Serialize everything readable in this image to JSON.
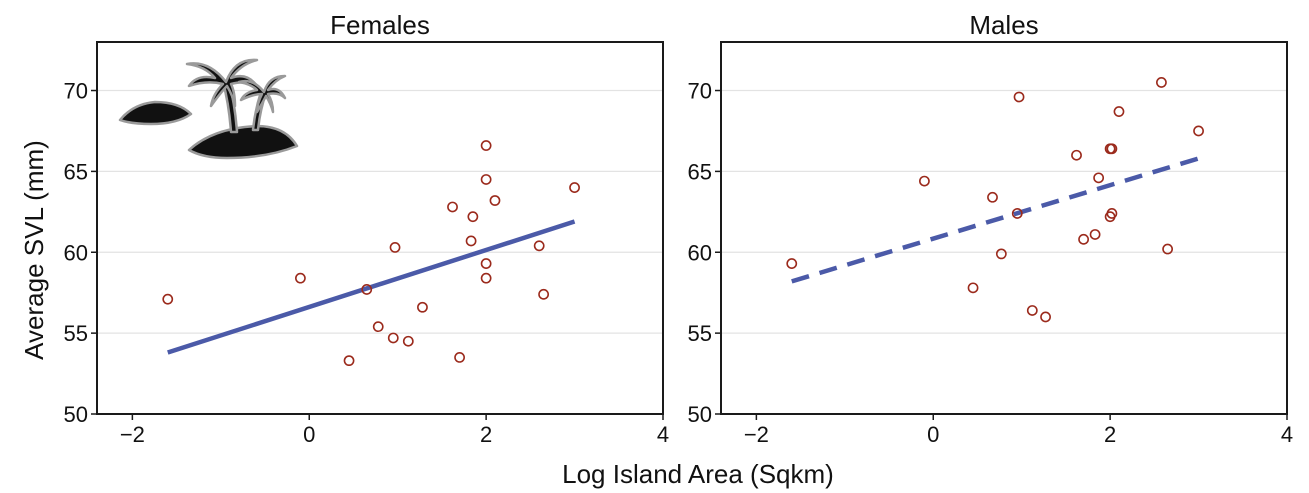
{
  "figure": {
    "xlabel": "Log Island Area (Sqkm)",
    "ylabel": "Average SVL (mm)"
  },
  "colors": {
    "point_stroke": "#9b2a1c",
    "fit_line": "#4b5aa8",
    "frame": "#1a1a1a",
    "grid": "#e3e3e3"
  },
  "icon": {
    "name": "island-with-palm-trees-icon"
  },
  "chart_data": [
    {
      "type": "scatter",
      "title": "Females",
      "xlim": [
        -2.4,
        4
      ],
      "ylim": [
        50,
        73
      ],
      "x_ticks": [
        -2,
        0,
        2,
        4
      ],
      "x_tick_labels": [
        "−2",
        "0",
        "2",
        "4"
      ],
      "y_ticks": [
        50,
        55,
        60,
        65,
        70
      ],
      "y_tick_labels": [
        "50",
        "55",
        "60",
        "65",
        "70"
      ],
      "grid": "horizontal",
      "points": [
        {
          "x": -1.6,
          "y": 57.1
        },
        {
          "x": -0.1,
          "y": 58.4
        },
        {
          "x": 0.45,
          "y": 53.3
        },
        {
          "x": 0.65,
          "y": 57.7
        },
        {
          "x": 0.78,
          "y": 55.4
        },
        {
          "x": 0.95,
          "y": 54.7
        },
        {
          "x": 0.97,
          "y": 60.3
        },
        {
          "x": 1.12,
          "y": 54.5
        },
        {
          "x": 1.28,
          "y": 56.6
        },
        {
          "x": 1.62,
          "y": 62.8
        },
        {
          "x": 1.7,
          "y": 53.5
        },
        {
          "x": 1.83,
          "y": 60.7
        },
        {
          "x": 1.85,
          "y": 62.2
        },
        {
          "x": 2.0,
          "y": 66.6
        },
        {
          "x": 2.0,
          "y": 64.5
        },
        {
          "x": 2.0,
          "y": 59.3
        },
        {
          "x": 2.0,
          "y": 58.4
        },
        {
          "x": 2.1,
          "y": 63.2
        },
        {
          "x": 2.6,
          "y": 60.4
        },
        {
          "x": 2.65,
          "y": 57.4
        },
        {
          "x": 3.0,
          "y": 64.0
        }
      ],
      "fit": {
        "x": [
          -1.6,
          3.0
        ],
        "y": [
          53.8,
          61.9
        ],
        "style": "solid"
      },
      "show_icon": true
    },
    {
      "type": "scatter",
      "title": "Males",
      "xlim": [
        -2.4,
        4
      ],
      "ylim": [
        50,
        73
      ],
      "x_ticks": [
        -2,
        0,
        2,
        4
      ],
      "x_tick_labels": [
        "−2",
        "0",
        "2",
        "4"
      ],
      "y_ticks": [
        50,
        55,
        60,
        65,
        70
      ],
      "y_tick_labels": [
        "50",
        "55",
        "60",
        "65",
        "70"
      ],
      "grid": "horizontal",
      "points": [
        {
          "x": -1.6,
          "y": 59.3
        },
        {
          "x": -0.1,
          "y": 64.4
        },
        {
          "x": 0.45,
          "y": 57.8
        },
        {
          "x": 0.67,
          "y": 63.4
        },
        {
          "x": 0.77,
          "y": 59.9
        },
        {
          "x": 0.95,
          "y": 62.4
        },
        {
          "x": 0.97,
          "y": 69.6
        },
        {
          "x": 1.12,
          "y": 56.4
        },
        {
          "x": 1.27,
          "y": 56.0
        },
        {
          "x": 1.62,
          "y": 66.0
        },
        {
          "x": 1.7,
          "y": 60.8
        },
        {
          "x": 1.83,
          "y": 61.1
        },
        {
          "x": 1.87,
          "y": 64.6
        },
        {
          "x": 2.0,
          "y": 66.4
        },
        {
          "x": 2.02,
          "y": 66.4
        },
        {
          "x": 2.0,
          "y": 62.2
        },
        {
          "x": 2.02,
          "y": 62.4
        },
        {
          "x": 2.1,
          "y": 68.7
        },
        {
          "x": 2.58,
          "y": 70.5
        },
        {
          "x": 2.65,
          "y": 60.2
        },
        {
          "x": 3.0,
          "y": 67.5
        }
      ],
      "fit": {
        "x": [
          -1.6,
          3.0
        ],
        "y": [
          58.2,
          65.8
        ],
        "style": "dashed"
      },
      "show_icon": false
    }
  ]
}
